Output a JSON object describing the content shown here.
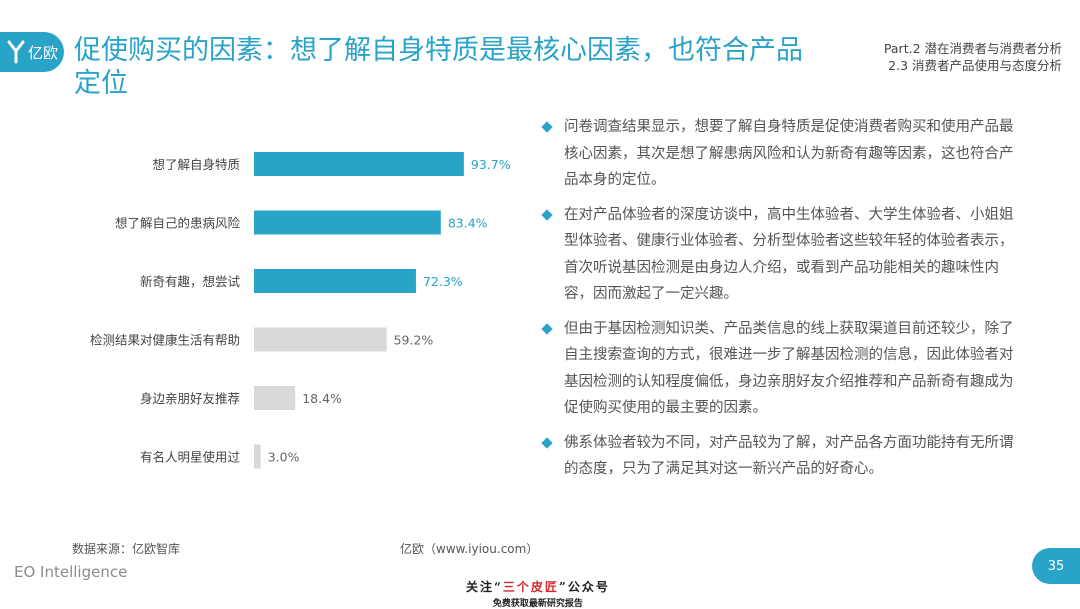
{
  "header": {
    "logo_text": "亿欧",
    "title": "促使购买的因素：想了解自身特质是最核心因素，也符合产品定位",
    "section_part": "Part.2 潜在消费者与消费者分析",
    "section_sub": "2.3 消费者产品使用与态度分析"
  },
  "chart_data": {
    "type": "bar",
    "orientation": "horizontal",
    "categories": [
      "想了解自身特质",
      "想了解自己的患病风险",
      "新奇有趣，想尝试",
      "检测结果对健康生活有帮助",
      "身边亲朋好友推荐",
      "有名人明星使用过"
    ],
    "values": [
      93.7,
      83.4,
      72.3,
      59.2,
      18.4,
      3.0
    ],
    "labels": [
      "93.7%",
      "83.4%",
      "72.3%",
      "59.2%",
      "18.4%",
      "3.0%"
    ],
    "highlighted": [
      true,
      true,
      true,
      false,
      false,
      false
    ],
    "xlim": [
      0,
      100
    ],
    "colors": {
      "highlight": "#2aa3c8",
      "normal": "#d9d9d9",
      "highlight_label": "#2aa3c8",
      "normal_label": "#666666"
    }
  },
  "bullets": [
    "问卷调查结果显示，想要了解自身特质是促使消费者购买和使用产品最核心因素，其次是想了解患病风险和认为新奇有趣等因素，这也符合产品本身的定位。",
    "在对产品体验者的深度访谈中，高中生体验者、大学生体验者、小姐姐型体验者、健康行业体验者、分析型体验者这些较年轻的体验者表示，首次听说基因检测是由身边人介绍，或看到产品功能相关的趣味性内容，因而激起了一定兴趣。",
    "但由于基因检测知识类、产品类信息的线上获取渠道目前还较少，除了自主搜索查询的方式，很难进一步了解基因检测的信息，因此体验者对基因检测的认知程度偏低，身边亲朋好友介绍推荐和产品新奇有趣成为促使购买使用的最主要的因素。",
    "佛系体验者较为不同，对产品较为了解，对产品各方面功能持有无所谓的态度，只为了满足其对这一新兴产品的好奇心。"
  ],
  "footer": {
    "source": "数据来源：亿欧智库",
    "site": "亿欧（www.iyiou.com）",
    "brand": "EO Intelligence",
    "page_number": "35",
    "watermark_pre": "关注“",
    "watermark_name": "三个皮匠",
    "watermark_post": "”公众号",
    "watermark_line2": "免费获取最新研究报告"
  }
}
